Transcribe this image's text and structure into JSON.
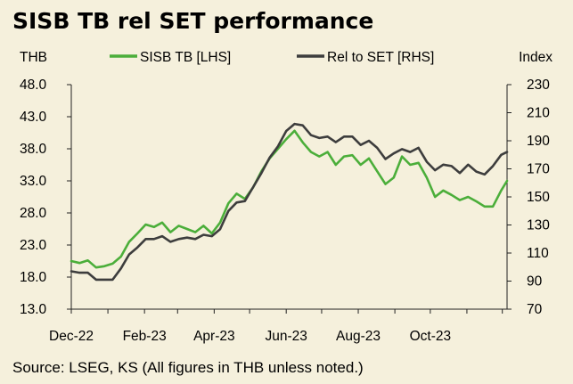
{
  "chart_data": {
    "type": "line",
    "title": "SISB TB rel SET performance",
    "left_axis_label": "THB",
    "right_axis_label": "Index",
    "source": "Source: LSEG, KS (All figures in THB unless noted.)",
    "x_ticks": [
      "Dec-22",
      "Feb-23",
      "Apr-23",
      "Jun-23",
      "Aug-23",
      "Oct-23"
    ],
    "x_range": [
      "2022-12-01",
      "2023-12-05"
    ],
    "y_left": {
      "min": 13,
      "max": 48,
      "ticks": [
        "13.0",
        "18.0",
        "23.0",
        "28.0",
        "33.0",
        "38.0",
        "43.0",
        "48.0"
      ]
    },
    "y_right": {
      "min": 70,
      "max": 230,
      "ticks": [
        "70",
        "90",
        "110",
        "130",
        "150",
        "170",
        "190",
        "210",
        "230"
      ]
    },
    "grid": false,
    "legend_position": "top",
    "series": [
      {
        "name": "SISB TB [LHS]",
        "axis": "left",
        "color": "#4bae3a",
        "points": [
          [
            "2022-12-01",
            20.5
          ],
          [
            "2022-12-08",
            20.2
          ],
          [
            "2022-12-15",
            20.6
          ],
          [
            "2022-12-22",
            19.5
          ],
          [
            "2022-12-29",
            19.7
          ],
          [
            "2023-01-05",
            20.1
          ],
          [
            "2023-01-12",
            21.2
          ],
          [
            "2023-01-19",
            23.5
          ],
          [
            "2023-01-26",
            24.8
          ],
          [
            "2023-02-02",
            26.2
          ],
          [
            "2023-02-09",
            25.8
          ],
          [
            "2023-02-16",
            26.5
          ],
          [
            "2023-02-23",
            25.0
          ],
          [
            "2023-03-02",
            26.0
          ],
          [
            "2023-03-09",
            25.5
          ],
          [
            "2023-03-16",
            25.0
          ],
          [
            "2023-03-23",
            26.0
          ],
          [
            "2023-03-30",
            24.8
          ],
          [
            "2023-04-06",
            26.5
          ],
          [
            "2023-04-13",
            29.5
          ],
          [
            "2023-04-20",
            31.0
          ],
          [
            "2023-04-27",
            30.2
          ],
          [
            "2023-05-04",
            32.0
          ],
          [
            "2023-05-11",
            34.5
          ],
          [
            "2023-05-18",
            36.5
          ],
          [
            "2023-05-25",
            38.0
          ],
          [
            "2023-06-01",
            39.5
          ],
          [
            "2023-06-08",
            40.8
          ],
          [
            "2023-06-15",
            39.0
          ],
          [
            "2023-06-22",
            37.5
          ],
          [
            "2023-06-29",
            36.8
          ],
          [
            "2023-07-06",
            37.5
          ],
          [
            "2023-07-13",
            35.5
          ],
          [
            "2023-07-20",
            36.8
          ],
          [
            "2023-07-27",
            37.0
          ],
          [
            "2023-08-03",
            35.5
          ],
          [
            "2023-08-10",
            36.5
          ],
          [
            "2023-08-17",
            34.5
          ],
          [
            "2023-08-24",
            32.5
          ],
          [
            "2023-08-31",
            33.5
          ],
          [
            "2023-09-07",
            36.8
          ],
          [
            "2023-09-14",
            35.5
          ],
          [
            "2023-09-21",
            35.8
          ],
          [
            "2023-09-28",
            33.5
          ],
          [
            "2023-10-05",
            30.5
          ],
          [
            "2023-10-12",
            31.5
          ],
          [
            "2023-10-19",
            30.8
          ],
          [
            "2023-10-26",
            30.0
          ],
          [
            "2023-11-02",
            30.5
          ],
          [
            "2023-11-09",
            29.8
          ],
          [
            "2023-11-16",
            29.0
          ],
          [
            "2023-11-23",
            29.0
          ],
          [
            "2023-11-30",
            31.5
          ],
          [
            "2023-12-05",
            33.0
          ]
        ]
      },
      {
        "name": "Rel to SET [RHS]",
        "axis": "right",
        "color": "#3d3d3d",
        "points": [
          [
            "2022-12-01",
            97
          ],
          [
            "2022-12-08",
            96
          ],
          [
            "2022-12-15",
            96
          ],
          [
            "2022-12-22",
            91
          ],
          [
            "2022-12-29",
            91
          ],
          [
            "2023-01-05",
            91
          ],
          [
            "2023-01-12",
            99
          ],
          [
            "2023-01-19",
            109
          ],
          [
            "2023-01-26",
            114
          ],
          [
            "2023-02-02",
            120
          ],
          [
            "2023-02-09",
            120
          ],
          [
            "2023-02-16",
            122
          ],
          [
            "2023-02-23",
            118
          ],
          [
            "2023-03-02",
            120
          ],
          [
            "2023-03-09",
            121
          ],
          [
            "2023-03-16",
            120
          ],
          [
            "2023-03-23",
            123
          ],
          [
            "2023-03-30",
            122
          ],
          [
            "2023-04-06",
            127
          ],
          [
            "2023-04-13",
            140
          ],
          [
            "2023-04-20",
            146
          ],
          [
            "2023-04-27",
            147
          ],
          [
            "2023-05-04",
            157
          ],
          [
            "2023-05-11",
            167
          ],
          [
            "2023-05-18",
            178
          ],
          [
            "2023-05-25",
            186
          ],
          [
            "2023-06-01",
            197
          ],
          [
            "2023-06-08",
            202
          ],
          [
            "2023-06-15",
            201
          ],
          [
            "2023-06-22",
            194
          ],
          [
            "2023-06-29",
            192
          ],
          [
            "2023-07-06",
            193
          ],
          [
            "2023-07-13",
            189
          ],
          [
            "2023-07-20",
            193
          ],
          [
            "2023-07-27",
            193
          ],
          [
            "2023-08-03",
            187
          ],
          [
            "2023-08-10",
            190
          ],
          [
            "2023-08-17",
            185
          ],
          [
            "2023-08-24",
            177
          ],
          [
            "2023-08-31",
            181
          ],
          [
            "2023-09-07",
            184
          ],
          [
            "2023-09-14",
            182
          ],
          [
            "2023-09-21",
            185
          ],
          [
            "2023-09-28",
            175
          ],
          [
            "2023-10-05",
            169
          ],
          [
            "2023-10-12",
            173
          ],
          [
            "2023-10-19",
            172
          ],
          [
            "2023-10-26",
            167
          ],
          [
            "2023-11-02",
            173
          ],
          [
            "2023-11-09",
            168
          ],
          [
            "2023-11-16",
            166
          ],
          [
            "2023-11-23",
            172
          ],
          [
            "2023-11-30",
            180
          ],
          [
            "2023-12-05",
            182
          ]
        ]
      }
    ]
  }
}
